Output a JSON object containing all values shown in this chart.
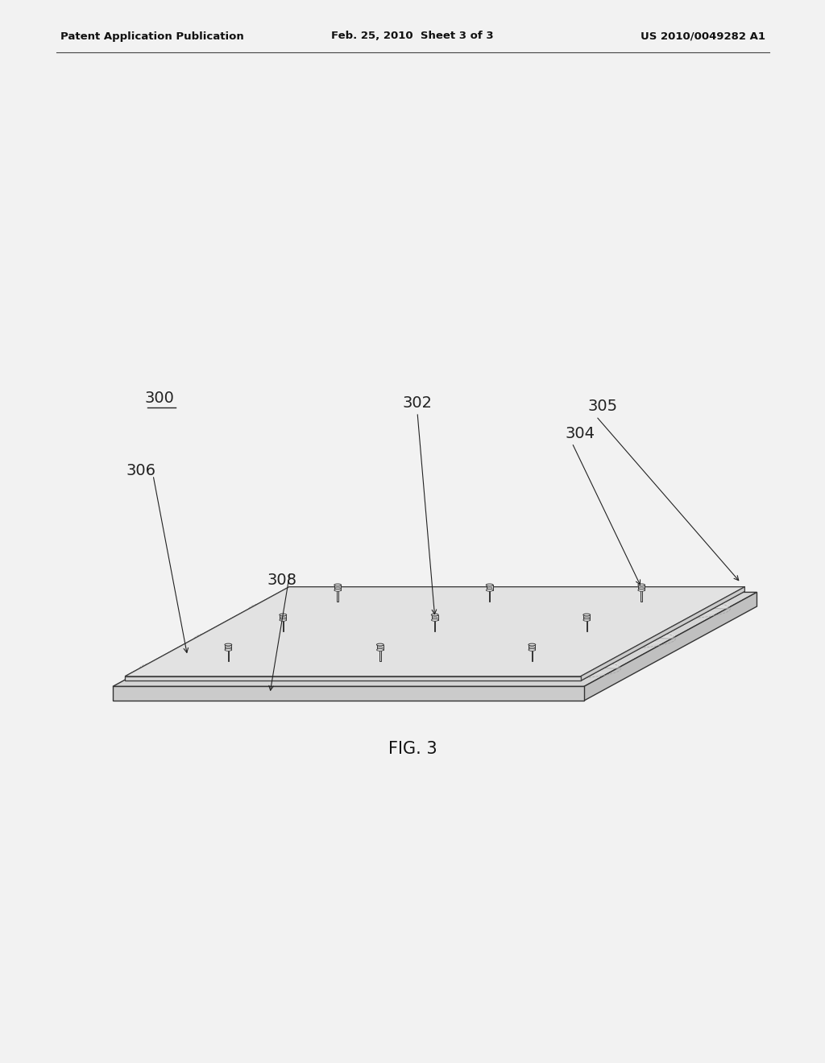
{
  "background_color": "#f0f0f0",
  "header_left": "Patent Application Publication",
  "header_center": "Feb. 25, 2010  Sheet 3 of 3",
  "header_right": "US 2010/0049282 A1",
  "figure_label": "FIG. 3",
  "line_color": "#333333",
  "bg_page": "#f2f2f2"
}
